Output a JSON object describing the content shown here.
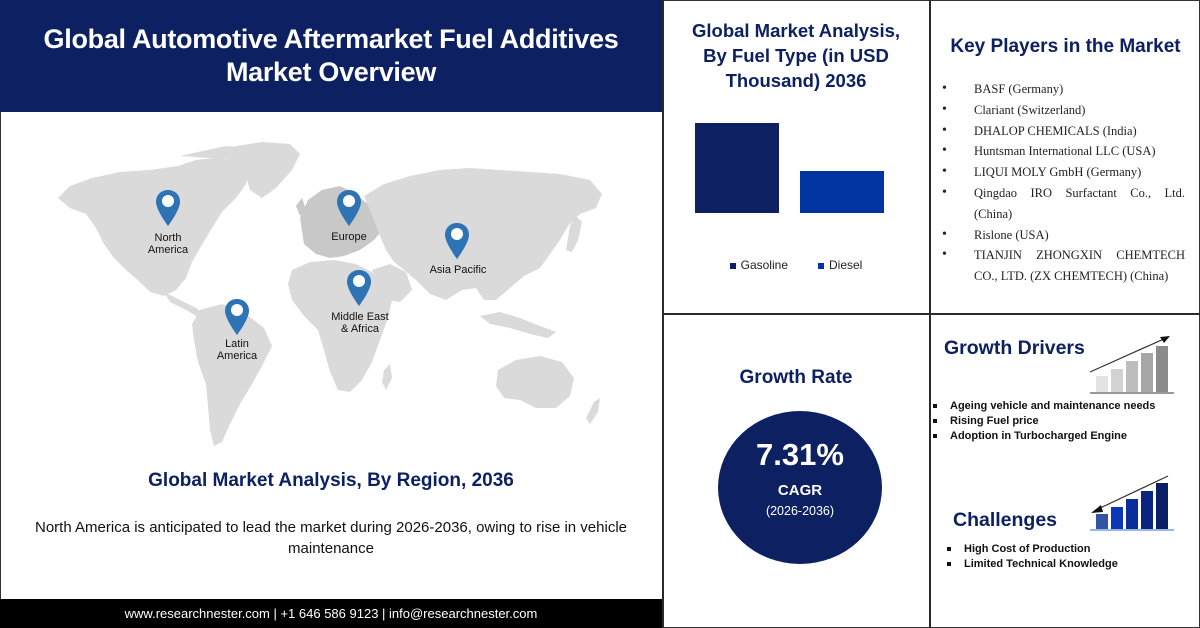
{
  "header": {
    "title_line1": "Global Automotive Aftermarket Fuel Additives",
    "title_line2": "Market Overview",
    "bg_color": "#0d2162"
  },
  "map": {
    "regions": [
      {
        "name": "North America",
        "line1": "North",
        "line2": "America"
      },
      {
        "name": "Europe",
        "line1": "Europe",
        "line2": ""
      },
      {
        "name": "Asia Pacific",
        "line1": "Asia Pacific",
        "line2": ""
      },
      {
        "name": "Latin America",
        "line1": "Latin",
        "line2": "America"
      },
      {
        "name": "Middle East & Africa",
        "line1": "Middle East",
        "line2": "& Africa"
      }
    ],
    "pin_color": "#2e74b5",
    "land_color": "#d9d9d9"
  },
  "region_section": {
    "title": "Global Market Analysis, By Region, 2036",
    "description": "North America is anticipated to lead the market during 2026-2036, owing to rise in vehicle maintenance"
  },
  "footer": {
    "text": "www.researchnester.com | +1 646 586 9123 | info@researchnester.com"
  },
  "fuel_type": {
    "title_line1": "Global Market Analysis,",
    "title_line2": "By Fuel Type (in USD",
    "title_line3": "Thousand) 2036",
    "legend": [
      {
        "label": "Gasoline",
        "color": "#0d2162"
      },
      {
        "label": "Diesel",
        "color": "#0034a0"
      }
    ]
  },
  "chart_data": {
    "type": "bar",
    "title": "Global Market Analysis, By Fuel Type (in USD Thousand) 2036",
    "categories": [
      "Gasoline",
      "Diesel"
    ],
    "values": [
      90,
      42
    ],
    "value_note": "relative bar heights in px; no axis or data labels shown",
    "colors": [
      "#0d2162",
      "#0034a0"
    ],
    "xlabel": "",
    "ylabel": "",
    "grid": false,
    "legend_position": "bottom"
  },
  "key_players": {
    "title": "Key Players in the Market",
    "items": [
      "BASF (Germany)",
      "Clariant (Switzerland)",
      "DHALOP CHEMICALS (India)",
      "Huntsman International LLC (USA)",
      "LIQUI MOLY GmbH (Germany)",
      "Qingdao IRO Surfactant Co., Ltd. (China)",
      "Rislone (USA)",
      "TIANJIN ZHONGXIN CHEMTECH CO., LTD. (ZX CHEMTECH) (China)"
    ]
  },
  "growth_rate": {
    "title": "Growth Rate",
    "value": "7.31%",
    "label": "CAGR",
    "period": "(2026-2036)"
  },
  "growth_drivers": {
    "title": "Growth Drivers",
    "items": [
      "Ageing vehicle and maintenance needs",
      "Rising Fuel price",
      "Adoption in Turbocharged Engine"
    ]
  },
  "challenges": {
    "title": "Challenges",
    "items": [
      "High Cost of Production",
      "Limited Technical Knowledge"
    ]
  }
}
